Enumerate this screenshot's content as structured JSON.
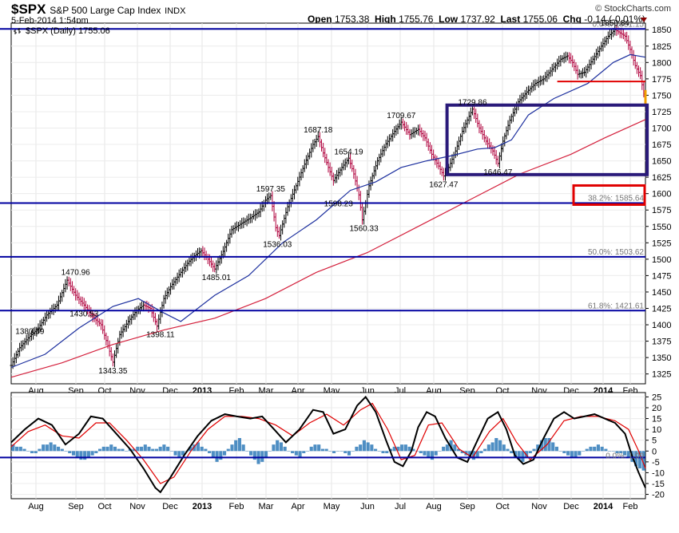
{
  "header": {
    "symbol": "$SPX",
    "name": "S&P 500 Large Cap Index",
    "exchange": "INDX",
    "datetime": "5-Feb-2014 1:54pm",
    "brand": "© StockCharts.com",
    "open_label": "Open",
    "open": "1753.38",
    "high_label": "High",
    "high": "1755.76",
    "low_label": "Low",
    "low": "1737.92",
    "last_label": "Last",
    "last": "1755.06",
    "chg_label": "Chg",
    "chg": "-0.14 (-0.01%)"
  },
  "legend": {
    "series_label": "$SPX (Daily) 1755.06"
  },
  "colors": {
    "horizontal_lines": "#0000a0",
    "ma50": "#1c2f9e",
    "ma200": "#d4213d",
    "box": "#2a1a7a",
    "red_box": "#e00000",
    "price_up": "#000000",
    "price_down": "#b0003c"
  },
  "chart_data": [
    {
      "type": "line",
      "panel": "price",
      "ylim": [
        1310,
        1860
      ],
      "y_ticks": [
        1325,
        1350,
        1375,
        1400,
        1425,
        1450,
        1475,
        1500,
        1525,
        1550,
        1575,
        1600,
        1625,
        1650,
        1675,
        1700,
        1725,
        1750,
        1775,
        1800,
        1825,
        1850
      ],
      "x_ticks": [
        "Aug",
        "Sep",
        "Oct",
        "Nov",
        "Dec",
        "2013",
        "Feb",
        "Mar",
        "Apr",
        "May",
        "Jun",
        "Jul",
        "Aug",
        "Sep",
        "Oct",
        "Nov",
        "Dec",
        "2014",
        "Feb"
      ],
      "price_points": [
        [
          0,
          1338
        ],
        [
          5,
          1365
        ],
        [
          10,
          1380
        ],
        [
          16,
          1395
        ],
        [
          21,
          1415
        ],
        [
          27,
          1430
        ],
        [
          33,
          1468
        ],
        [
          38,
          1445
        ],
        [
          43,
          1430
        ],
        [
          48,
          1412
        ],
        [
          53,
          1400
        ],
        [
          57,
          1368
        ],
        [
          60,
          1343
        ],
        [
          64,
          1385
        ],
        [
          69,
          1405
        ],
        [
          74,
          1422
        ],
        [
          78,
          1430
        ],
        [
          82,
          1425
        ],
        [
          86,
          1398
        ],
        [
          90,
          1440
        ],
        [
          94,
          1458
        ],
        [
          100,
          1480
        ],
        [
          105,
          1497
        ],
        [
          108,
          1505
        ],
        [
          112,
          1513
        ],
        [
          116,
          1500
        ],
        [
          120,
          1485
        ],
        [
          125,
          1512
        ],
        [
          130,
          1545
        ],
        [
          136,
          1555
        ],
        [
          141,
          1563
        ],
        [
          146,
          1572
        ],
        [
          150,
          1590
        ],
        [
          153,
          1597
        ],
        [
          156,
          1548
        ],
        [
          158,
          1536
        ],
        [
          163,
          1580
        ],
        [
          168,
          1612
        ],
        [
          173,
          1645
        ],
        [
          178,
          1675
        ],
        [
          181,
          1687
        ],
        [
          184,
          1662
        ],
        [
          187,
          1640
        ],
        [
          190,
          1620
        ],
        [
          195,
          1640
        ],
        [
          199,
          1654
        ],
        [
          202,
          1630
        ],
        [
          205,
          1598
        ],
        [
          207,
          1560
        ],
        [
          211,
          1612
        ],
        [
          216,
          1650
        ],
        [
          221,
          1676
        ],
        [
          226,
          1695
        ],
        [
          230,
          1709
        ],
        [
          235,
          1690
        ],
        [
          240,
          1698
        ],
        [
          244,
          1685
        ],
        [
          248,
          1660
        ],
        [
          252,
          1642
        ],
        [
          255,
          1627
        ],
        [
          258,
          1640
        ],
        [
          262,
          1665
        ],
        [
          266,
          1695
        ],
        [
          270,
          1718
        ],
        [
          272,
          1729
        ],
        [
          276,
          1700
        ],
        [
          280,
          1680
        ],
        [
          284,
          1665
        ],
        [
          287,
          1646
        ],
        [
          290,
          1680
        ],
        [
          294,
          1712
        ],
        [
          299,
          1740
        ],
        [
          304,
          1755
        ],
        [
          309,
          1768
        ],
        [
          314,
          1775
        ],
        [
          319,
          1790
        ],
        [
          324,
          1805
        ],
        [
          328,
          1810
        ],
        [
          331,
          1800
        ],
        [
          334,
          1782
        ],
        [
          338,
          1785
        ],
        [
          343,
          1805
        ],
        [
          348,
          1825
        ],
        [
          352,
          1840
        ],
        [
          356,
          1850
        ],
        [
          359,
          1845
        ],
        [
          362,
          1840
        ],
        [
          365,
          1820
        ],
        [
          368,
          1795
        ],
        [
          371,
          1780
        ],
        [
          373,
          1752
        ],
        [
          374,
          1755
        ]
      ],
      "ma50_points": [
        [
          0,
          1335
        ],
        [
          20,
          1355
        ],
        [
          40,
          1395
        ],
        [
          60,
          1428
        ],
        [
          75,
          1440
        ],
        [
          90,
          1418
        ],
        [
          100,
          1405
        ],
        [
          120,
          1445
        ],
        [
          140,
          1475
        ],
        [
          160,
          1525
        ],
        [
          180,
          1560
        ],
        [
          200,
          1605
        ],
        [
          215,
          1618
        ],
        [
          230,
          1640
        ],
        [
          245,
          1650
        ],
        [
          260,
          1658
        ],
        [
          275,
          1668
        ],
        [
          285,
          1670
        ],
        [
          295,
          1682
        ],
        [
          305,
          1720
        ],
        [
          320,
          1745
        ],
        [
          340,
          1768
        ],
        [
          355,
          1800
        ],
        [
          365,
          1812
        ],
        [
          374,
          1808
        ]
      ],
      "ma200_points": [
        [
          0,
          1320
        ],
        [
          30,
          1342
        ],
        [
          60,
          1370
        ],
        [
          90,
          1392
        ],
        [
          120,
          1410
        ],
        [
          150,
          1440
        ],
        [
          180,
          1480
        ],
        [
          210,
          1510
        ],
        [
          240,
          1550
        ],
        [
          270,
          1590
        ],
        [
          300,
          1630
        ],
        [
          330,
          1660
        ],
        [
          350,
          1685
        ],
        [
          374,
          1713
        ]
      ],
      "annotations": [
        {
          "text": "1380.39",
          "x": 11,
          "y": 1380
        },
        {
          "text": "1470.96",
          "x": 38,
          "y": 1470
        },
        {
          "text": "1430.53",
          "x": 43,
          "y": 1430
        },
        {
          "text": "1343.35",
          "x": 60,
          "y": 1343
        },
        {
          "text": "1398.11",
          "x": 88,
          "y": 1398
        },
        {
          "text": "1485.01",
          "x": 121,
          "y": 1485
        },
        {
          "text": "1597.35",
          "x": 153,
          "y": 1597
        },
        {
          "text": "1536.03",
          "x": 157,
          "y": 1536
        },
        {
          "text": "1687.18",
          "x": 181,
          "y": 1687
        },
        {
          "text": "1654.19",
          "x": 199,
          "y": 1654
        },
        {
          "text": "1598.23",
          "x": 193,
          "y": 1598
        },
        {
          "text": "1560.33",
          "x": 208,
          "y": 1560
        },
        {
          "text": "1709.67",
          "x": 230,
          "y": 1709
        },
        {
          "text": "1729.86",
          "x": 272,
          "y": 1729
        },
        {
          "text": "1627.47",
          "x": 255,
          "y": 1627
        },
        {
          "text": "1646.47",
          "x": 287,
          "y": 1646
        },
        {
          "text": "1850.84",
          "x": 356,
          "y": 1850
        }
      ],
      "fib_levels": [
        {
          "text": "0.0%: 1851.15",
          "value": 1851.15
        },
        {
          "text": "38.2%: 1585.64",
          "value": 1585.64
        },
        {
          "text": "50.0%: 1503.62",
          "value": 1503.62
        },
        {
          "text": "61.8%: 1421.61",
          "value": 1421.61
        }
      ],
      "support_line_red": {
        "value": 1771,
        "x_start": 322,
        "x_end": 374
      },
      "box": {
        "x_start": 257,
        "x_end": 375,
        "y_low": 1629,
        "y_high": 1735
      },
      "red_box_level": 1585.64
    },
    {
      "type": "line",
      "panel": "macd",
      "ylim": [
        -22,
        27
      ],
      "y_ticks": [
        25,
        20,
        15,
        10,
        5,
        0,
        -5,
        -10,
        -15,
        -20
      ],
      "x_ticks": [
        "Aug",
        "Sep",
        "Oct",
        "Nov",
        "Dec",
        "2013",
        "Feb",
        "Mar",
        "Apr",
        "May",
        "Jun",
        "Jul",
        "Aug",
        "Sep",
        "Oct",
        "Nov",
        "Dec",
        "2014",
        "Feb"
      ],
      "zero_label": "0.0%: 1.00",
      "hline": -3,
      "macd_points": [
        [
          0,
          4
        ],
        [
          8,
          10
        ],
        [
          16,
          15
        ],
        [
          24,
          12
        ],
        [
          32,
          3
        ],
        [
          40,
          8
        ],
        [
          47,
          16
        ],
        [
          54,
          15
        ],
        [
          62,
          8
        ],
        [
          70,
          1
        ],
        [
          78,
          -8
        ],
        [
          85,
          -17
        ],
        [
          88,
          -19
        ],
        [
          94,
          -12
        ],
        [
          102,
          -2
        ],
        [
          110,
          7
        ],
        [
          118,
          14
        ],
        [
          126,
          17
        ],
        [
          133,
          16
        ],
        [
          141,
          15
        ],
        [
          148,
          16
        ],
        [
          155,
          10
        ],
        [
          162,
          4
        ],
        [
          170,
          10
        ],
        [
          178,
          19
        ],
        [
          184,
          18
        ],
        [
          190,
          8
        ],
        [
          197,
          10
        ],
        [
          204,
          21
        ],
        [
          209,
          25
        ],
        [
          215,
          18
        ],
        [
          221,
          5
        ],
        [
          226,
          -5
        ],
        [
          231,
          -7
        ],
        [
          236,
          0
        ],
        [
          240,
          11
        ],
        [
          245,
          18
        ],
        [
          250,
          16
        ],
        [
          256,
          6
        ],
        [
          263,
          -3
        ],
        [
          269,
          -5
        ],
        [
          275,
          5
        ],
        [
          281,
          15
        ],
        [
          287,
          18
        ],
        [
          292,
          10
        ],
        [
          297,
          -2
        ],
        [
          302,
          -6
        ],
        [
          308,
          -4
        ],
        [
          314,
          6
        ],
        [
          320,
          15
        ],
        [
          326,
          18
        ],
        [
          332,
          15
        ],
        [
          338,
          16
        ],
        [
          344,
          17
        ],
        [
          350,
          15
        ],
        [
          356,
          13
        ],
        [
          362,
          8
        ],
        [
          366,
          -2
        ],
        [
          370,
          -10
        ],
        [
          374,
          -17
        ]
      ],
      "signal_points": [
        [
          0,
          2
        ],
        [
          10,
          9
        ],
        [
          20,
          12
        ],
        [
          30,
          7
        ],
        [
          40,
          6
        ],
        [
          50,
          13
        ],
        [
          58,
          13
        ],
        [
          68,
          5
        ],
        [
          78,
          -4
        ],
        [
          88,
          -15
        ],
        [
          96,
          -12
        ],
        [
          106,
          0
        ],
        [
          116,
          10
        ],
        [
          126,
          16
        ],
        [
          136,
          16
        ],
        [
          146,
          15
        ],
        [
          156,
          12
        ],
        [
          166,
          7
        ],
        [
          176,
          13
        ],
        [
          186,
          17
        ],
        [
          196,
          12
        ],
        [
          206,
          19
        ],
        [
          213,
          22
        ],
        [
          222,
          10
        ],
        [
          230,
          -4
        ],
        [
          238,
          -2
        ],
        [
          246,
          12
        ],
        [
          254,
          13
        ],
        [
          264,
          1
        ],
        [
          272,
          -3
        ],
        [
          282,
          9
        ],
        [
          290,
          15
        ],
        [
          298,
          4
        ],
        [
          306,
          -4
        ],
        [
          316,
          3
        ],
        [
          326,
          14
        ],
        [
          336,
          16
        ],
        [
          346,
          16
        ],
        [
          356,
          14
        ],
        [
          364,
          10
        ],
        [
          370,
          0
        ],
        [
          374,
          -8
        ]
      ],
      "histogram": [
        3,
        2,
        2,
        1,
        0,
        -1,
        -1,
        1,
        3,
        3,
        4,
        3,
        2,
        1,
        0,
        -1,
        -2,
        -3,
        -4,
        -4,
        -3,
        -2,
        -1,
        1,
        2,
        2,
        3,
        2,
        1,
        1,
        0,
        1,
        1,
        2,
        2,
        3,
        2,
        1,
        1,
        2,
        3,
        2,
        0,
        -2,
        -3,
        -2,
        0,
        2,
        3,
        4,
        2,
        1,
        -1,
        -3,
        -5,
        -4,
        -2,
        1,
        3,
        5,
        6,
        3,
        0,
        -2,
        -4,
        -6,
        -5,
        -3,
        0,
        3,
        5,
        4,
        2,
        0,
        -1,
        -2,
        -3,
        -1,
        0,
        2,
        3,
        3,
        1,
        1,
        0,
        -1,
        0,
        0,
        -1,
        -2,
        0,
        2,
        3,
        5,
        4,
        3,
        1,
        0,
        -1,
        -1,
        1,
        2,
        2,
        3,
        3,
        2,
        1,
        0,
        -1,
        -2,
        -3,
        -4,
        -2,
        0,
        2,
        3,
        5,
        3,
        1,
        -1,
        -2,
        -3,
        -4,
        -3,
        -1,
        1,
        3,
        4,
        6,
        5,
        3,
        1,
        -1,
        -3,
        -4,
        -5,
        -3,
        -1,
        1,
        3,
        5,
        6,
        6,
        4,
        2,
        0,
        -1,
        -2,
        -3,
        -3,
        -2,
        0,
        1,
        2,
        2,
        3,
        2,
        1,
        0,
        0,
        -1,
        -1,
        -2,
        -3,
        -5,
        -7,
        -8,
        -9
      ]
    }
  ]
}
